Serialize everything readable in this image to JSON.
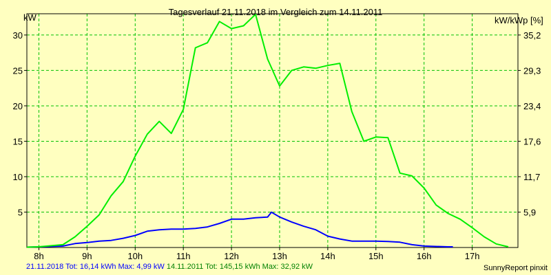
{
  "chart_data": {
    "type": "line",
    "title": "Tagesverlauf 21.11.2018 im Vergleich zum 14.11.2011",
    "ylabel": "kW",
    "ylabel_right": "kW/kWp [%]",
    "xlim": [
      7.75,
      17.95
    ],
    "ylim": [
      0,
      33
    ],
    "x_ticks": [
      8,
      9,
      10,
      11,
      12,
      13,
      14,
      15,
      16,
      17
    ],
    "x_tick_labels": [
      "8h",
      "9h",
      "10h",
      "11h",
      "12h",
      "13h",
      "14h",
      "15h",
      "16h",
      "17h"
    ],
    "y_ticks": [
      5,
      10,
      15,
      20,
      25,
      30
    ],
    "y_tick_labels": [
      "5",
      "10",
      "15",
      "20",
      "25",
      "30"
    ],
    "y_right_ticks": [
      5,
      10,
      15,
      20,
      25,
      30
    ],
    "y_right_tick_labels": [
      "5,9",
      "11,7",
      "17,6",
      "23,4",
      "29,3",
      "35,2"
    ],
    "grid": true,
    "legend": "bottom-left",
    "series": [
      {
        "name": "21.11.2018",
        "color": "#0000ff",
        "x": [
          7.75,
          8.0,
          8.5,
          8.75,
          9.0,
          9.25,
          9.5,
          9.75,
          10.0,
          10.25,
          10.5,
          10.75,
          11.0,
          11.25,
          11.5,
          11.75,
          12.0,
          12.25,
          12.5,
          12.75,
          12.83,
          13.0,
          13.25,
          13.5,
          13.75,
          14.0,
          14.25,
          14.5,
          14.75,
          15.0,
          15.25,
          15.5,
          15.75,
          16.0,
          16.25,
          16.5,
          16.6
        ],
        "y": [
          0.05,
          0.1,
          0.2,
          0.55,
          0.7,
          0.9,
          1.0,
          1.3,
          1.7,
          2.3,
          2.5,
          2.6,
          2.6,
          2.7,
          2.9,
          3.4,
          4.0,
          4.0,
          4.2,
          4.3,
          4.99,
          4.3,
          3.6,
          3.0,
          2.5,
          1.6,
          1.2,
          0.9,
          0.9,
          0.9,
          0.85,
          0.75,
          0.4,
          0.2,
          0.15,
          0.1,
          0.1
        ]
      },
      {
        "name": "14.11.2011",
        "color": "#00ee00",
        "x": [
          7.75,
          8.0,
          8.5,
          8.75,
          9.0,
          9.25,
          9.5,
          9.75,
          10.0,
          10.25,
          10.5,
          10.75,
          11.0,
          11.25,
          11.5,
          11.75,
          12.0,
          12.25,
          12.5,
          12.75,
          13.0,
          13.25,
          13.5,
          13.75,
          14.0,
          14.25,
          14.5,
          14.75,
          15.0,
          15.25,
          15.5,
          15.75,
          16.0,
          16.25,
          16.5,
          16.75,
          17.0,
          17.25,
          17.5,
          17.75
        ],
        "y": [
          0.05,
          0.1,
          0.4,
          1.5,
          3.0,
          4.6,
          7.3,
          9.3,
          12.9,
          16.0,
          17.8,
          16.1,
          19.5,
          28.2,
          28.9,
          31.9,
          30.9,
          31.3,
          32.92,
          26.6,
          22.8,
          25.0,
          25.5,
          25.3,
          25.7,
          26.0,
          19.2,
          15.0,
          15.6,
          15.5,
          10.5,
          10.1,
          8.4,
          6.0,
          4.8,
          4.0,
          2.8,
          1.5,
          0.5,
          0.1
        ]
      }
    ]
  },
  "footer": {
    "series1_text": "21.11.2018 Tot: 16,14 kWh Max: 4,99 kW",
    "series2_text": "14.11.2011 Tot: 145,15 kWh Max: 32,92 kW",
    "brand": "SunnyReport pinxit"
  }
}
